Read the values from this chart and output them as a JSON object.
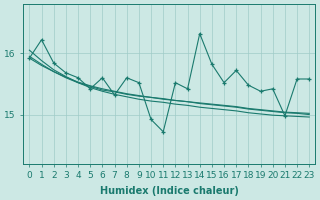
{
  "title": "",
  "xlabel": "Humidex (Indice chaleur)",
  "ylabel": "",
  "bg_color": "#cce8e4",
  "grid_color": "#a0ccc8",
  "line_color": "#1a7a6e",
  "x_data": [
    0,
    1,
    2,
    3,
    4,
    5,
    6,
    7,
    8,
    9,
    10,
    11,
    12,
    13,
    14,
    15,
    16,
    17,
    18,
    19,
    20,
    21,
    22,
    23
  ],
  "y_main": [
    15.92,
    16.22,
    15.84,
    15.68,
    15.6,
    15.42,
    15.6,
    15.32,
    15.6,
    15.52,
    14.92,
    14.72,
    15.52,
    15.42,
    16.32,
    15.82,
    15.52,
    15.72,
    15.48,
    15.38,
    15.42,
    14.98,
    15.58,
    15.58
  ],
  "y_trend1": [
    15.95,
    15.82,
    15.7,
    15.6,
    15.52,
    15.46,
    15.4,
    15.37,
    15.33,
    15.3,
    15.28,
    15.25,
    15.23,
    15.21,
    15.18,
    15.16,
    15.14,
    15.12,
    15.09,
    15.07,
    15.05,
    15.03,
    15.02,
    15.0
  ],
  "y_trend2": [
    16.05,
    15.88,
    15.73,
    15.62,
    15.52,
    15.44,
    15.38,
    15.33,
    15.29,
    15.25,
    15.22,
    15.2,
    15.17,
    15.15,
    15.12,
    15.1,
    15.08,
    15.06,
    15.03,
    15.01,
    14.99,
    14.98,
    14.97,
    14.96
  ],
  "y_trend3": [
    15.92,
    15.8,
    15.7,
    15.61,
    15.53,
    15.47,
    15.42,
    15.38,
    15.34,
    15.31,
    15.28,
    15.26,
    15.23,
    15.21,
    15.19,
    15.17,
    15.15,
    15.13,
    15.1,
    15.08,
    15.06,
    15.04,
    15.03,
    15.02
  ],
  "yticks": [
    15,
    16
  ],
  "ylim": [
    14.2,
    16.8
  ],
  "xlim": [
    -0.5,
    23.5
  ],
  "axis_fontsize": 7,
  "tick_fontsize": 6.5
}
